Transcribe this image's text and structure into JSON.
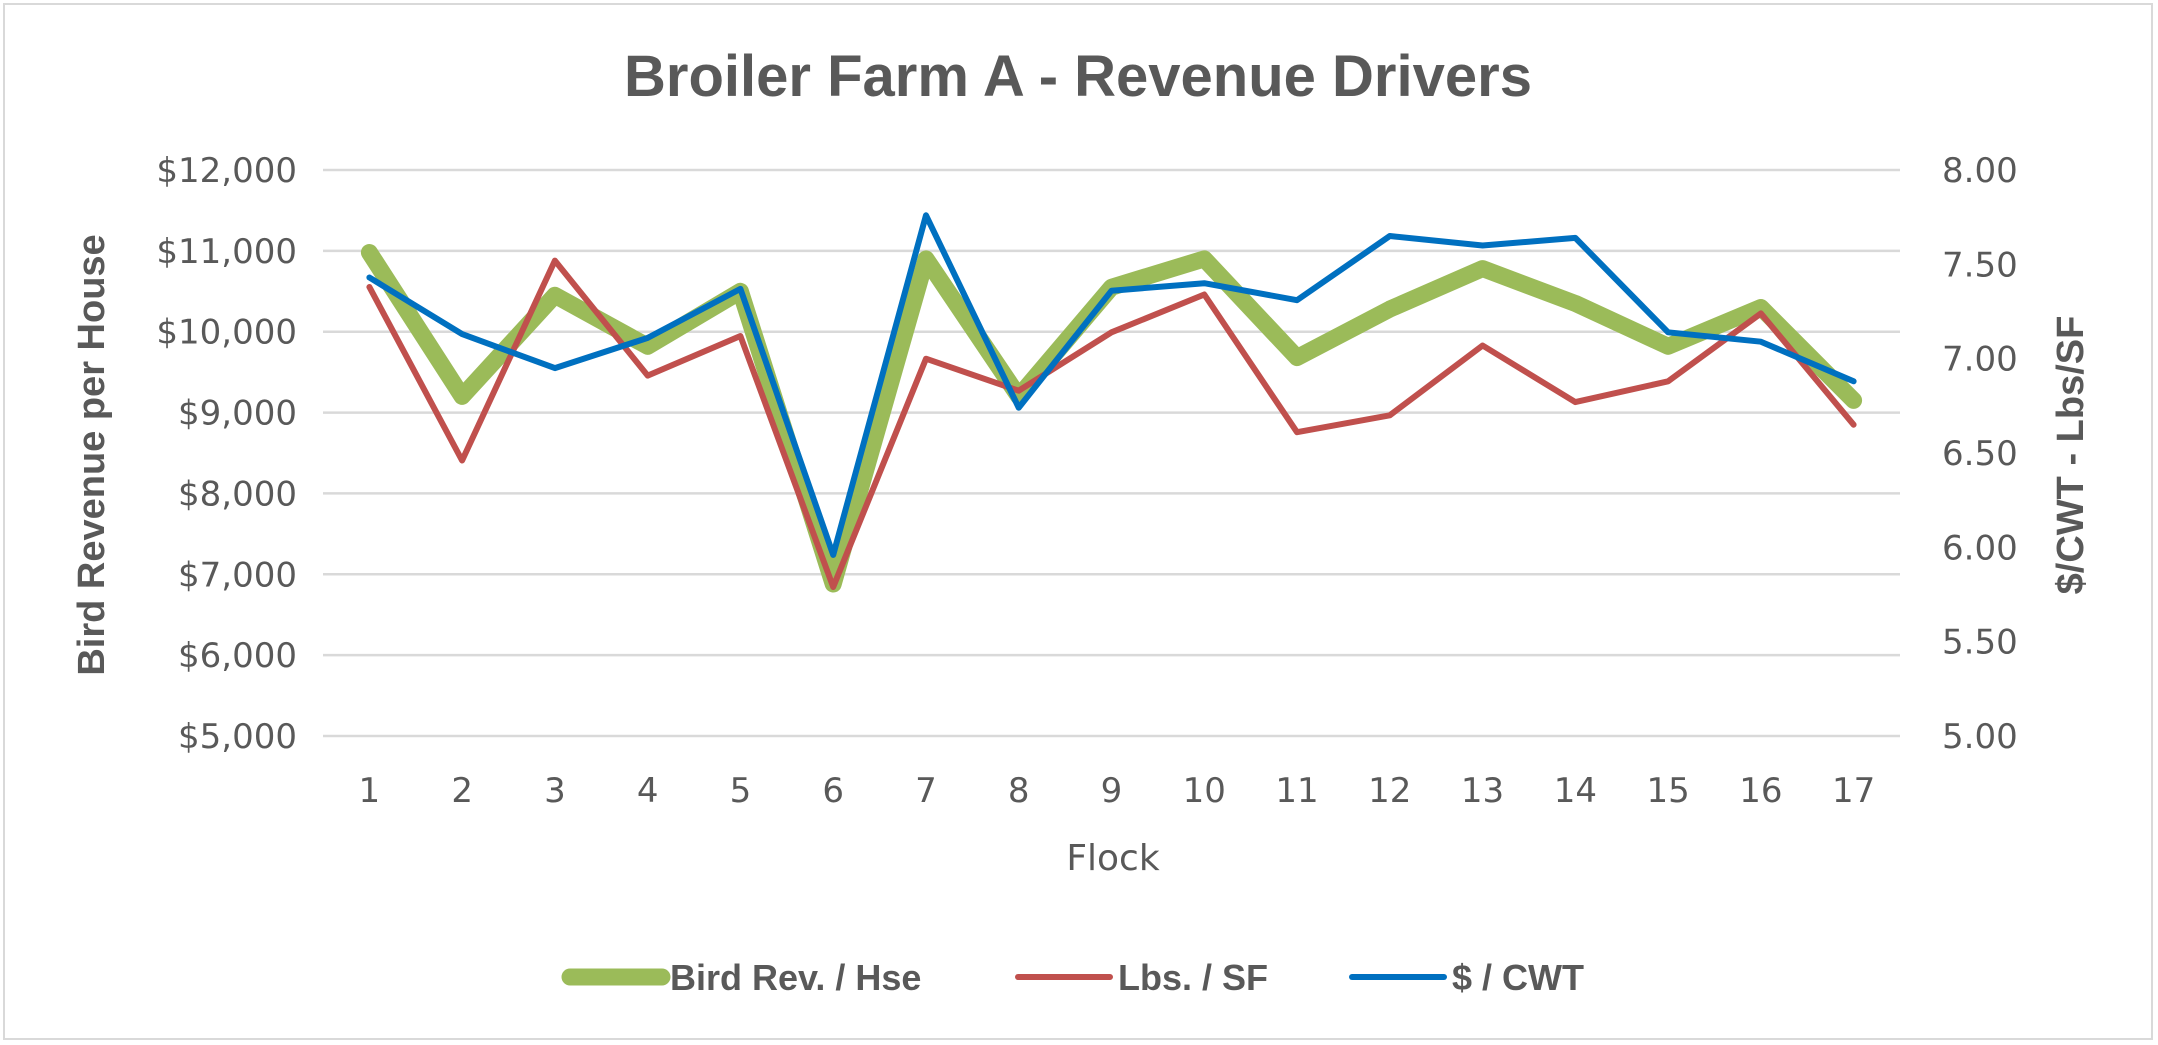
{
  "chart_data": {
    "type": "line",
    "title": "Broiler Farm A - Revenue Drivers",
    "xlabel": "Flock",
    "ylabel_left": "Bird Revenue per House",
    "ylabel_right": "$/CWT  - Lbs/SF",
    "categories": [
      "1",
      "2",
      "3",
      "4",
      "5",
      "6",
      "7",
      "8",
      "9",
      "10",
      "11",
      "12",
      "13",
      "14",
      "15",
      "16",
      "17"
    ],
    "ylim_left": [
      5000,
      12000
    ],
    "yticks_left": [
      5000,
      6000,
      7000,
      8000,
      9000,
      10000,
      11000,
      12000
    ],
    "ytick_labels_left": [
      "$5,000",
      "$6,000",
      "$7,000",
      "$8,000",
      "$9,000",
      "$10,000",
      "$11,000",
      "$12,000"
    ],
    "ylim_right": [
      5.0,
      8.0
    ],
    "yticks_right": [
      5.0,
      5.5,
      6.0,
      6.5,
      7.0,
      7.5,
      8.0
    ],
    "ytick_labels_right": [
      "5.00",
      "5.50",
      "6.00",
      "6.50",
      "7.00",
      "7.50",
      "8.00"
    ],
    "grid": true,
    "legend_position": "bottom",
    "series": [
      {
        "name": "Bird Rev. / Hse",
        "axis": "left",
        "color": "#9bbb59",
        "values": [
          10980,
          9200,
          10450,
          9820,
          10500,
          6880,
          10900,
          9200,
          10550,
          10900,
          9680,
          10280,
          10780,
          10350,
          9820,
          10300,
          9150
        ]
      },
      {
        "name": "Lbs. / SF",
        "axis": "right",
        "color": "#c0504d",
        "values": [
          7.38,
          6.46,
          7.52,
          6.91,
          7.12,
          5.79,
          7.0,
          6.83,
          7.14,
          7.34,
          6.61,
          6.7,
          7.07,
          6.77,
          6.88,
          7.24,
          6.65
        ]
      },
      {
        "name": "$ / CWT",
        "axis": "right",
        "color": "#0070c0",
        "values": [
          7.43,
          7.13,
          6.95,
          7.11,
          7.37,
          5.96,
          7.76,
          6.74,
          7.36,
          7.4,
          7.31,
          7.65,
          7.6,
          7.64,
          7.14,
          7.09,
          6.88
        ]
      }
    ]
  }
}
